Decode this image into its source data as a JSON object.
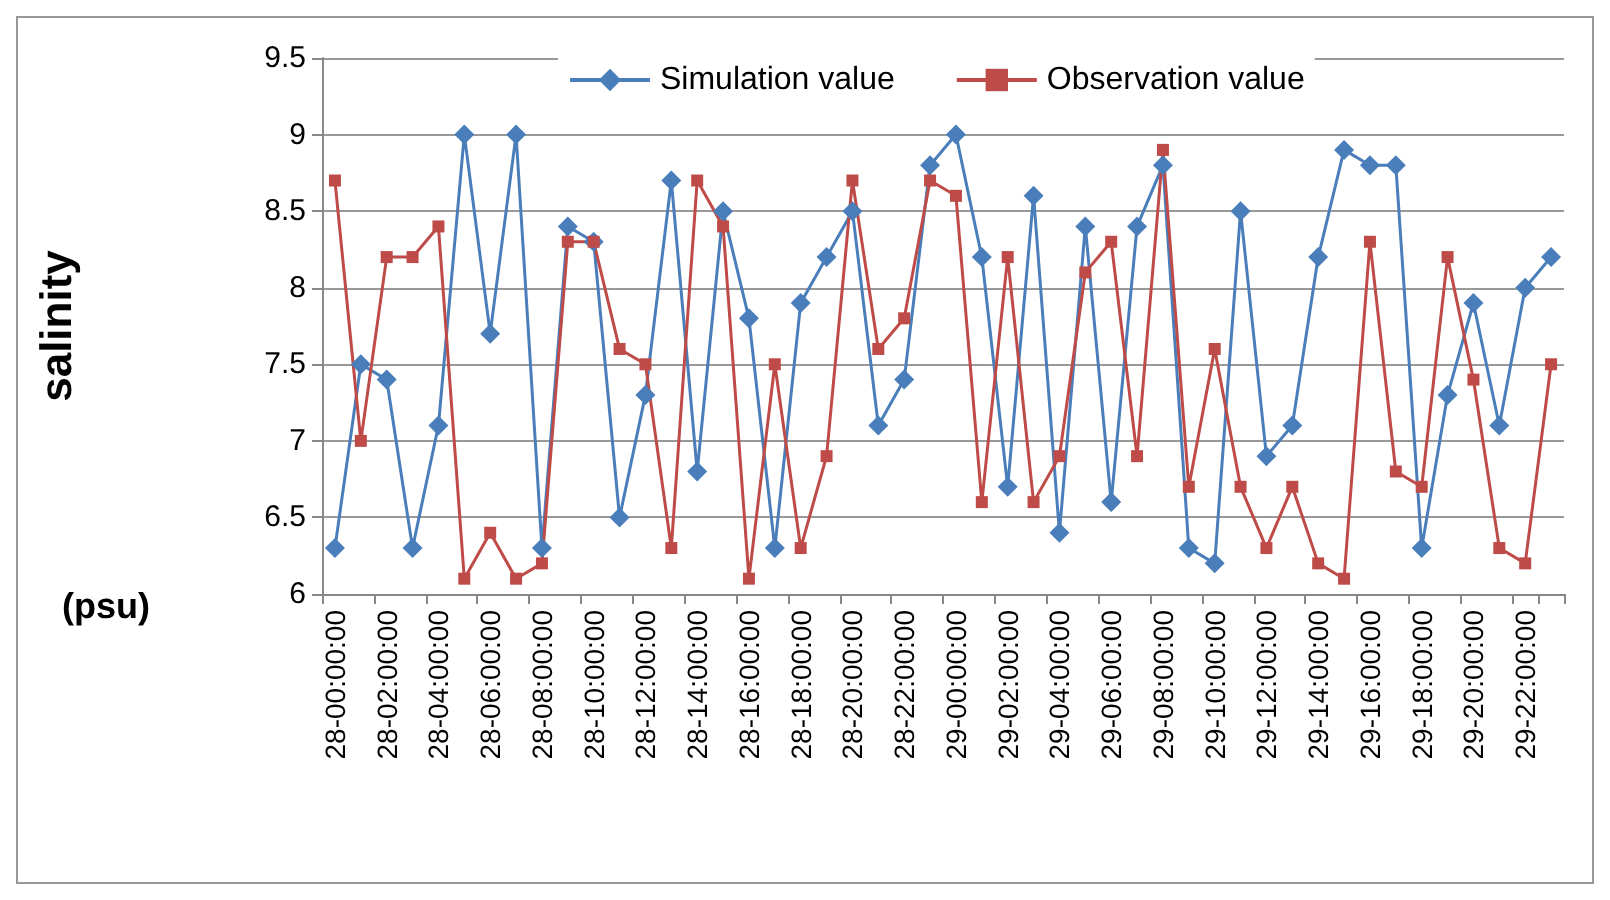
{
  "chart_data": {
    "type": "line",
    "ylabel": "salinity",
    "annotations": [
      "(psu)"
    ],
    "categories": [
      "28-00:00:00",
      null,
      "28-02:00:00",
      null,
      "28-04:00:00",
      null,
      "28-06:00:00",
      null,
      "28-08:00:00",
      null,
      "28-10:00:00",
      null,
      "28-12:00:00",
      null,
      "28-14:00:00",
      null,
      "28-16:00:00",
      null,
      "28-18:00:00",
      null,
      "28-20:00:00",
      null,
      "28-22:00:00",
      null,
      "29-00:00:00",
      null,
      "29-02:00:00",
      null,
      "29-04:00:00",
      null,
      "29-06:00:00",
      null,
      "29-08:00:00",
      null,
      "29-10:00:00",
      null,
      "29-12:00:00",
      null,
      "29-14:00:00",
      null,
      "29-16:00:00",
      null,
      "29-18:00:00",
      null,
      "29-20:00:00",
      null,
      "29-22:00:00",
      null
    ],
    "series": [
      {
        "name": "Simulation value",
        "color": "#4a7ebb",
        "marker": "diamond",
        "values": [
          6.3,
          7.5,
          7.4,
          6.3,
          7.1,
          9.0,
          7.7,
          9.0,
          6.3,
          8.4,
          8.3,
          6.5,
          7.3,
          8.7,
          6.8,
          8.5,
          7.8,
          6.3,
          7.9,
          8.2,
          8.5,
          7.1,
          7.4,
          8.8,
          9.0,
          8.2,
          6.7,
          8.6,
          6.4,
          8.4,
          6.6,
          8.4,
          8.8,
          6.3,
          6.2,
          8.5,
          6.9,
          7.1,
          8.2,
          8.9,
          8.8,
          8.8,
          6.3,
          7.3,
          7.9,
          7.1,
          8.0,
          8.2
        ]
      },
      {
        "name": "Observation value",
        "color": "#be4b48",
        "marker": "square",
        "values": [
          8.7,
          7.0,
          8.2,
          8.2,
          8.4,
          6.1,
          6.4,
          6.1,
          6.2,
          8.3,
          8.3,
          7.6,
          7.5,
          6.3,
          8.7,
          8.4,
          6.1,
          7.5,
          6.3,
          6.9,
          8.7,
          7.6,
          7.8,
          8.7,
          8.6,
          6.6,
          8.2,
          6.6,
          6.9,
          8.1,
          8.3,
          6.9,
          8.9,
          6.7,
          7.6,
          6.7,
          6.3,
          6.7,
          6.2,
          6.1,
          8.3,
          6.8,
          6.7,
          8.2,
          7.4,
          6.3,
          6.2,
          7.5
        ]
      }
    ],
    "ylim": [
      6,
      9.5
    ],
    "yticks": [
      6,
      6.5,
      7,
      7.5,
      8,
      8.5,
      9,
      9.5
    ],
    "grid": "y",
    "legend": "top",
    "line_style": "solid"
  }
}
